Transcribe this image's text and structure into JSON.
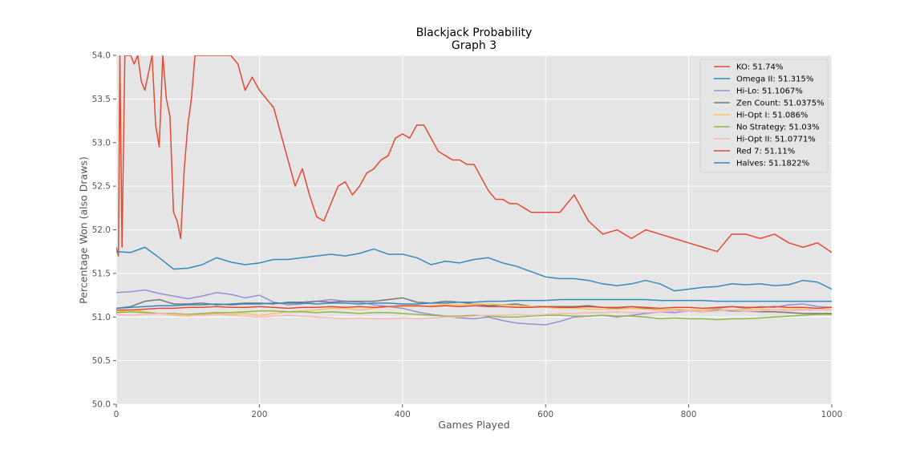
{
  "chart_data": {
    "type": "line",
    "title": "Blackjack Probability",
    "subtitle": "Graph 3",
    "xlabel": "Games Played",
    "ylabel": "Percentage Won (also Draws)",
    "xlim": [
      0,
      1000
    ],
    "ylim": [
      50.0,
      54.0
    ],
    "xticks": [
      0,
      200,
      400,
      600,
      800,
      1000
    ],
    "yticks": [
      50.0,
      50.5,
      51.0,
      51.5,
      52.0,
      52.5,
      53.0,
      53.5,
      54.0
    ],
    "ytick_labels": [
      "50.0",
      "50.5",
      "51.0",
      "51.5",
      "52.0",
      "52.5",
      "53.0",
      "53.5",
      "54.0"
    ],
    "grid": true,
    "background": "#e5e5e5",
    "legend_position": "top-right",
    "series": [
      {
        "name": "KO: 51.74%",
        "color": "#e24a33",
        "x": [
          0,
          3,
          5,
          8,
          12,
          16,
          20,
          25,
          30,
          35,
          40,
          45,
          50,
          55,
          60,
          65,
          70,
          75,
          80,
          85,
          90,
          95,
          100,
          105,
          110,
          115,
          120,
          130,
          140,
          150,
          160,
          170,
          180,
          190,
          200,
          210,
          220,
          230,
          240,
          250,
          260,
          270,
          280,
          290,
          300,
          310,
          320,
          330,
          340,
          350,
          360,
          370,
          380,
          390,
          400,
          410,
          420,
          430,
          440,
          450,
          460,
          470,
          480,
          490,
          500,
          510,
          520,
          530,
          540,
          550,
          560,
          570,
          580,
          590,
          600,
          620,
          640,
          660,
          680,
          700,
          720,
          740,
          760,
          780,
          800,
          820,
          840,
          860,
          880,
          900,
          920,
          940,
          960,
          980,
          1000
        ],
        "y": [
          51.8,
          51.7,
          54.0,
          51.8,
          54.0,
          54.0,
          54.0,
          53.9,
          54.0,
          53.7,
          53.6,
          53.8,
          54.0,
          53.2,
          52.95,
          54.0,
          53.5,
          53.3,
          52.2,
          52.1,
          51.9,
          52.7,
          53.2,
          53.5,
          54.0,
          54.0,
          54.0,
          54.0,
          54.0,
          54.0,
          54.0,
          53.9,
          53.6,
          53.75,
          53.6,
          53.5,
          53.4,
          53.1,
          52.8,
          52.5,
          52.7,
          52.4,
          52.15,
          52.1,
          52.3,
          52.5,
          52.55,
          52.4,
          52.5,
          52.65,
          52.7,
          52.8,
          52.85,
          53.05,
          53.1,
          53.05,
          53.2,
          53.2,
          53.05,
          52.9,
          52.85,
          52.8,
          52.8,
          52.75,
          52.75,
          52.6,
          52.45,
          52.35,
          52.35,
          52.3,
          52.3,
          52.25,
          52.2,
          52.2,
          52.2,
          52.2,
          52.4,
          52.1,
          51.95,
          52.0,
          51.9,
          52.0,
          51.95,
          51.9,
          51.85,
          51.8,
          51.75,
          51.95,
          51.95,
          51.9,
          51.95,
          51.85,
          51.8,
          51.85,
          51.74
        ]
      },
      {
        "name": "Omega II: 51.315%",
        "color": "#348abd",
        "x": [
          0,
          20,
          40,
          60,
          80,
          100,
          120,
          140,
          160,
          180,
          200,
          220,
          240,
          260,
          280,
          300,
          320,
          340,
          360,
          380,
          400,
          420,
          440,
          460,
          480,
          500,
          520,
          540,
          560,
          580,
          600,
          620,
          640,
          660,
          680,
          700,
          720,
          740,
          760,
          780,
          800,
          820,
          840,
          860,
          880,
          900,
          920,
          940,
          960,
          980,
          1000
        ],
        "y": [
          51.75,
          51.74,
          51.8,
          51.68,
          51.55,
          51.56,
          51.6,
          51.68,
          51.63,
          51.6,
          51.62,
          51.66,
          51.66,
          51.68,
          51.7,
          51.72,
          51.7,
          51.73,
          51.78,
          51.72,
          51.72,
          51.68,
          51.6,
          51.64,
          51.62,
          51.66,
          51.68,
          51.62,
          51.58,
          51.52,
          51.46,
          51.44,
          51.44,
          51.42,
          51.38,
          51.36,
          51.38,
          51.42,
          51.38,
          51.3,
          51.32,
          51.34,
          51.35,
          51.38,
          51.37,
          51.38,
          51.36,
          51.37,
          51.42,
          51.4,
          51.32
        ]
      },
      {
        "name": "Hi-Lo: 51.1067%",
        "color": "#988ed5",
        "x": [
          0,
          20,
          40,
          60,
          80,
          100,
          120,
          140,
          160,
          180,
          200,
          220,
          240,
          260,
          280,
          300,
          320,
          340,
          360,
          380,
          400,
          420,
          440,
          460,
          480,
          500,
          520,
          540,
          560,
          580,
          600,
          620,
          640,
          660,
          680,
          700,
          720,
          740,
          760,
          780,
          800,
          820,
          840,
          860,
          880,
          900,
          920,
          940,
          960,
          980,
          1000
        ],
        "y": [
          51.28,
          51.29,
          51.31,
          51.27,
          51.24,
          51.21,
          51.24,
          51.28,
          51.26,
          51.22,
          51.25,
          51.17,
          51.14,
          51.15,
          51.18,
          51.2,
          51.18,
          51.17,
          51.14,
          51.12,
          51.1,
          51.06,
          51.03,
          51.01,
          50.99,
          50.98,
          51.0,
          50.96,
          50.93,
          50.92,
          50.91,
          50.95,
          51.0,
          51.01,
          51.02,
          51.0,
          51.02,
          51.04,
          51.06,
          51.05,
          51.07,
          51.08,
          51.1,
          51.12,
          51.1,
          51.12,
          51.11,
          51.14,
          51.15,
          51.12,
          51.11
        ]
      },
      {
        "name": "Zen Count: 51.0375%",
        "color": "#777777",
        "x": [
          0,
          20,
          40,
          60,
          80,
          100,
          120,
          140,
          160,
          180,
          200,
          220,
          240,
          260,
          280,
          300,
          320,
          340,
          360,
          380,
          400,
          420,
          440,
          460,
          480,
          500,
          520,
          540,
          560,
          580,
          600,
          620,
          640,
          660,
          680,
          700,
          720,
          740,
          760,
          780,
          800,
          820,
          840,
          860,
          880,
          900,
          920,
          940,
          960,
          980,
          1000
        ],
        "y": [
          51.1,
          51.12,
          51.18,
          51.2,
          51.15,
          51.15,
          51.16,
          51.14,
          51.15,
          51.16,
          51.16,
          51.15,
          51.17,
          51.17,
          51.18,
          51.17,
          51.18,
          51.18,
          51.18,
          51.2,
          51.22,
          51.17,
          51.16,
          51.18,
          51.17,
          51.15,
          51.13,
          51.14,
          51.15,
          51.12,
          51.12,
          51.12,
          51.12,
          51.13,
          51.11,
          51.1,
          51.1,
          51.1,
          51.08,
          51.09,
          51.07,
          51.06,
          51.08,
          51.07,
          51.07,
          51.06,
          51.06,
          51.05,
          51.04,
          51.04,
          51.04
        ]
      },
      {
        "name": "Hi-Opt I: 51.086%",
        "color": "#fbc15e",
        "x": [
          0,
          20,
          40,
          60,
          80,
          100,
          120,
          140,
          160,
          180,
          200,
          220,
          240,
          260,
          280,
          300,
          320,
          340,
          360,
          380,
          400,
          420,
          440,
          460,
          480,
          500,
          520,
          540,
          560,
          580,
          600,
          620,
          640,
          660,
          680,
          700,
          720,
          740,
          760,
          780,
          800,
          820,
          840,
          860,
          880,
          900,
          920,
          940,
          960,
          980,
          1000
        ],
        "y": [
          51.06,
          51.08,
          51.06,
          51.04,
          51.02,
          51.01,
          51.03,
          51.04,
          51.03,
          51.04,
          51.02,
          51.04,
          51.06,
          51.07,
          51.08,
          51.1,
          51.1,
          51.08,
          51.1,
          51.12,
          51.12,
          51.12,
          51.13,
          51.14,
          51.14,
          51.15,
          51.15,
          51.14,
          51.13,
          51.12,
          51.11,
          51.1,
          51.1,
          51.09,
          51.09,
          51.09,
          51.1,
          51.09,
          51.08,
          51.09,
          51.08,
          51.08,
          51.09,
          51.08,
          51.09,
          51.09,
          51.08,
          51.09,
          51.09,
          51.08,
          51.09
        ]
      },
      {
        "name": "No Strategy: 51.03%",
        "color": "#8eba42",
        "x": [
          0,
          20,
          40,
          60,
          80,
          100,
          120,
          140,
          160,
          180,
          200,
          220,
          240,
          260,
          280,
          300,
          320,
          340,
          360,
          380,
          400,
          420,
          440,
          460,
          480,
          500,
          520,
          540,
          560,
          580,
          600,
          620,
          640,
          660,
          680,
          700,
          720,
          740,
          760,
          780,
          800,
          820,
          840,
          860,
          880,
          900,
          920,
          940,
          960,
          980,
          1000
        ],
        "y": [
          51.05,
          51.06,
          51.05,
          51.04,
          51.04,
          51.03,
          51.04,
          51.05,
          51.05,
          51.06,
          51.07,
          51.07,
          51.06,
          51.06,
          51.05,
          51.06,
          51.05,
          51.04,
          51.05,
          51.05,
          51.04,
          51.03,
          51.02,
          51.01,
          51.01,
          51.02,
          51.01,
          51.0,
          51.0,
          51.01,
          51.02,
          51.02,
          51.01,
          51.01,
          51.02,
          51.01,
          51.01,
          51.0,
          50.98,
          50.99,
          50.98,
          50.98,
          50.97,
          50.98,
          50.98,
          50.99,
          51.0,
          51.01,
          51.02,
          51.03,
          51.03
        ]
      },
      {
        "name": "Hi-Opt II: 51.0771%",
        "color": "#ffb5b8",
        "x": [
          0,
          20,
          40,
          60,
          80,
          100,
          120,
          140,
          160,
          180,
          200,
          220,
          240,
          260,
          280,
          300,
          320,
          340,
          360,
          380,
          400,
          420,
          440,
          460,
          480,
          500,
          520,
          540,
          560,
          580,
          600,
          620,
          640,
          660,
          680,
          700,
          720,
          740,
          760,
          780,
          800,
          820,
          840,
          860,
          880,
          900,
          920,
          940,
          960,
          980,
          1000
        ],
        "y": [
          51.03,
          51.02,
          51.03,
          51.04,
          51.03,
          51.02,
          51.02,
          51.03,
          51.02,
          51.01,
          51.0,
          51.01,
          51.02,
          51.01,
          51.0,
          50.99,
          50.98,
          50.99,
          50.98,
          50.98,
          50.99,
          50.98,
          50.99,
          51.0,
          51.0,
          51.01,
          51.02,
          51.02,
          51.03,
          51.02,
          51.03,
          51.04,
          51.04,
          51.05,
          51.05,
          51.06,
          51.05,
          51.05,
          51.06,
          51.07,
          51.07,
          51.06,
          51.07,
          51.08,
          51.07,
          51.07,
          51.08,
          51.07,
          51.08,
          51.08,
          51.08
        ]
      },
      {
        "name": "Red 7: 51.11%",
        "color": "#e24a33",
        "x": [
          0,
          20,
          40,
          60,
          80,
          100,
          120,
          140,
          160,
          180,
          200,
          220,
          240,
          260,
          280,
          300,
          320,
          340,
          360,
          380,
          400,
          420,
          440,
          460,
          480,
          500,
          520,
          540,
          560,
          580,
          600,
          620,
          640,
          660,
          680,
          700,
          720,
          740,
          760,
          780,
          800,
          820,
          840,
          860,
          880,
          900,
          920,
          940,
          960,
          980,
          1000
        ],
        "y": [
          51.08,
          51.08,
          51.09,
          51.1,
          51.1,
          51.11,
          51.11,
          51.12,
          51.11,
          51.11,
          51.12,
          51.11,
          51.1,
          51.11,
          51.11,
          51.12,
          51.11,
          51.12,
          51.11,
          51.12,
          51.13,
          51.13,
          51.12,
          51.13,
          51.12,
          51.13,
          51.12,
          51.12,
          51.11,
          51.11,
          51.12,
          51.11,
          51.11,
          51.12,
          51.11,
          51.11,
          51.12,
          51.11,
          51.1,
          51.11,
          51.11,
          51.1,
          51.11,
          51.12,
          51.11,
          51.11,
          51.12,
          51.11,
          51.11,
          51.1,
          51.11
        ]
      },
      {
        "name": "Halves: 51.1822%",
        "color": "#348abd",
        "x": [
          0,
          20,
          40,
          60,
          80,
          100,
          120,
          140,
          160,
          180,
          200,
          220,
          240,
          260,
          280,
          300,
          320,
          340,
          360,
          380,
          400,
          420,
          440,
          460,
          480,
          500,
          520,
          540,
          560,
          580,
          600,
          620,
          640,
          660,
          680,
          700,
          720,
          740,
          760,
          780,
          800,
          820,
          840,
          860,
          880,
          900,
          920,
          940,
          960,
          980,
          1000
        ],
        "y": [
          51.1,
          51.11,
          51.12,
          51.13,
          51.13,
          51.14,
          51.14,
          51.15,
          51.14,
          51.15,
          51.15,
          51.16,
          51.16,
          51.16,
          51.15,
          51.16,
          51.16,
          51.15,
          51.16,
          51.16,
          51.15,
          51.15,
          51.16,
          51.16,
          51.17,
          51.17,
          51.18,
          51.18,
          51.19,
          51.19,
          51.19,
          51.2,
          51.2,
          51.2,
          51.2,
          51.2,
          51.2,
          51.2,
          51.19,
          51.19,
          51.19,
          51.19,
          51.18,
          51.18,
          51.18,
          51.18,
          51.18,
          51.18,
          51.18,
          51.18,
          51.18
        ]
      }
    ]
  }
}
